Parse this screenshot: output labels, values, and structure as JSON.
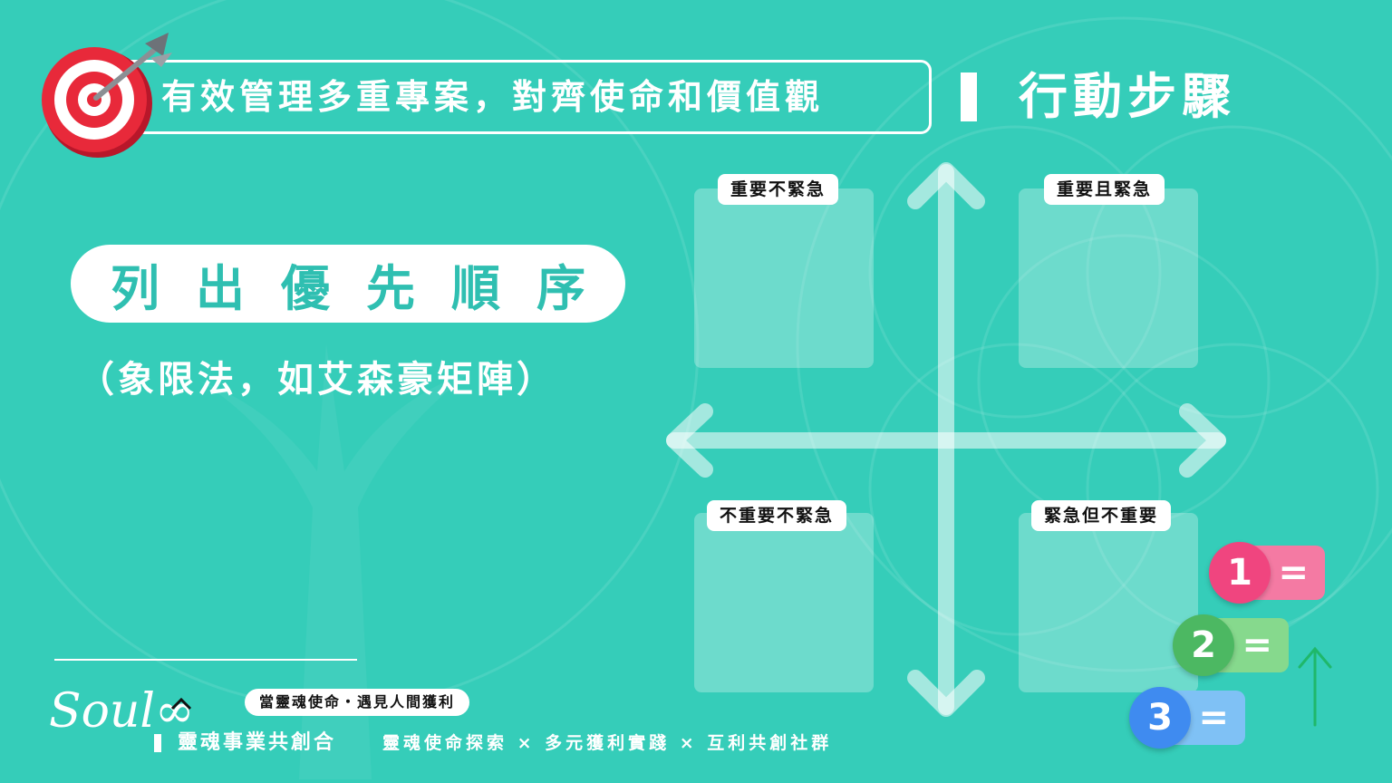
{
  "header": {
    "title": "有效管理多重專案，對齊使命和價值觀",
    "section": "行動步驟",
    "icon": "target-arrow-icon"
  },
  "main": {
    "heading": "列出優先順序",
    "subtitle": "（象限法，如艾森豪矩陣）"
  },
  "matrix": {
    "quadrants": [
      {
        "label": "重要不緊急"
      },
      {
        "label": "重要且緊急"
      },
      {
        "label": "不重要不緊急"
      },
      {
        "label": "緊急但不重要"
      }
    ]
  },
  "badges": [
    {
      "number": "1",
      "symbol": "=",
      "color": "#f0457f",
      "tag_color": "#f47aa3"
    },
    {
      "number": "2",
      "symbol": "=",
      "color": "#4cb862",
      "tag_color": "#86d98d"
    },
    {
      "number": "3",
      "symbol": "=",
      "color": "#3f8bf0",
      "tag_color": "#7fc1f5"
    }
  ],
  "footer": {
    "logo_text": "Soul∞",
    "slogan": "當靈魂使命・遇見人間獲利",
    "brand": "靈魂事業共創合",
    "tagline": "靈魂使命探索 × 多元獲利實踐 × 互利共創社群"
  },
  "colors": {
    "background": "#35cdb9",
    "accent_text": "#2fbfb1",
    "up_arrow": "#1fb86a"
  }
}
